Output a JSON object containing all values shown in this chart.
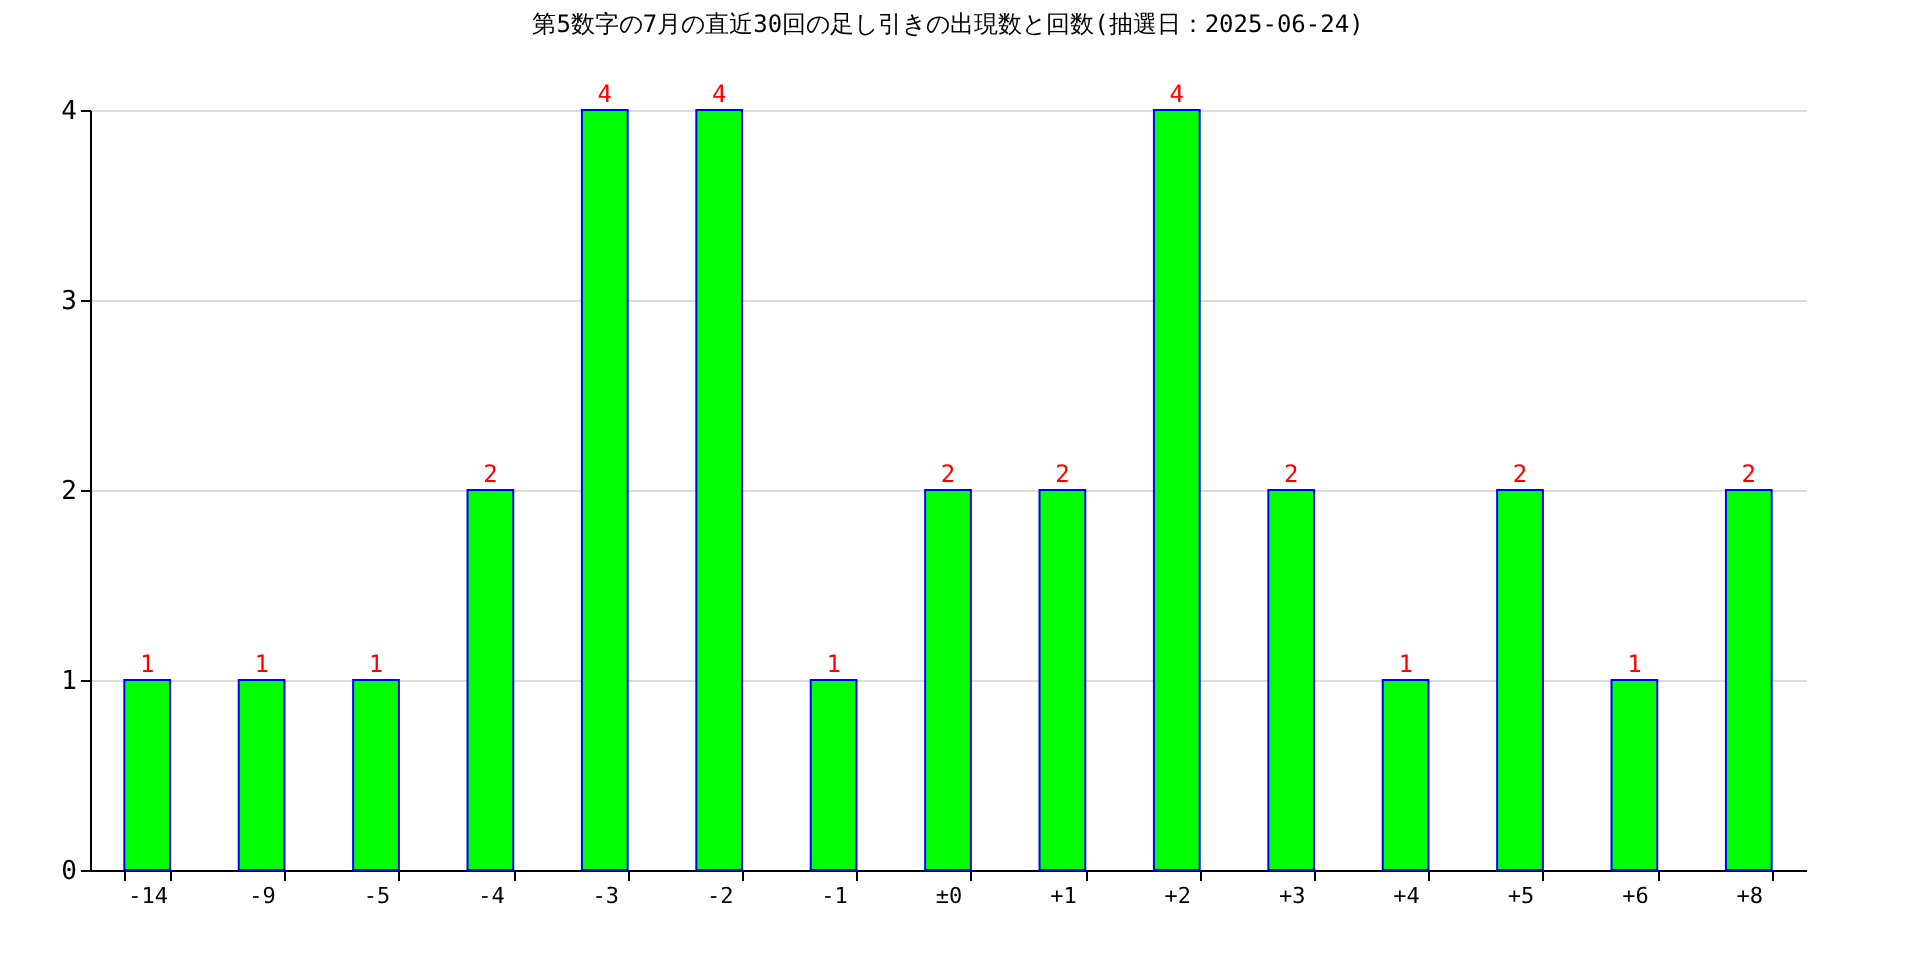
{
  "chart_data": {
    "type": "bar",
    "title": "第5数字の7月の直近30回の足し引きの出現数と回数(抽選日：2025-06-24)",
    "categories": [
      "-14",
      "-9",
      "-5",
      "-4",
      "-3",
      "-2",
      "-1",
      "±0",
      "+1",
      "+2",
      "+3",
      "+4",
      "+5",
      "+6",
      "+8"
    ],
    "values": [
      1,
      1,
      1,
      2,
      4,
      4,
      1,
      2,
      2,
      4,
      2,
      1,
      2,
      1,
      2
    ],
    "color": "#00ff00",
    "ylim": [
      0,
      4
    ],
    "yticks": [
      0,
      1,
      2,
      3,
      4
    ],
    "grid": "y",
    "data_labels": true
  }
}
